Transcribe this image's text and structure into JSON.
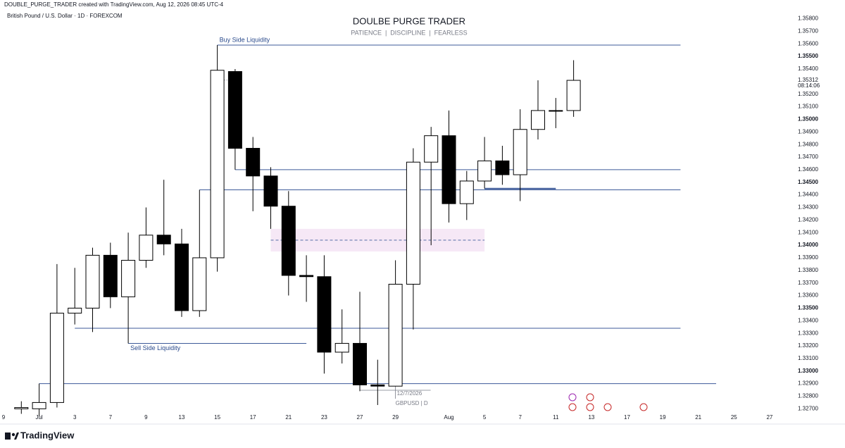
{
  "header": {
    "credit": "DOUBLE_PURGE_TRADER created with TradingView.com, Aug 12, 2026 08:45 UTC-4",
    "symbol": "British Pound / U.S. Dollar · 1D · FOREXCOM"
  },
  "footer": {
    "brand": "TradingView"
  },
  "chart_data": {
    "type": "candlestick",
    "title": "DOULBE PURGE TRADER",
    "subtitle": "PATIENCE  |  DISCIPLINE  |  FEARLESS",
    "categories": [
      "9",
      null,
      "Jul",
      null,
      "3",
      null,
      "7",
      null,
      "9",
      null,
      "13",
      null,
      "15",
      null,
      "17",
      null,
      "21",
      null,
      "23",
      null,
      "27",
      null,
      "29",
      null,
      null,
      "Aug",
      null,
      "5",
      null,
      "7",
      null,
      "11",
      null,
      "13",
      null,
      "17",
      null,
      "19",
      null,
      "21",
      null,
      "25",
      null,
      "27"
    ],
    "open": [
      null,
      1.327,
      1.327,
      1.3275,
      1.3346,
      1.335,
      1.3392,
      1.3359,
      1.3388,
      1.3408,
      1.3401,
      1.3348,
      1.339,
      1.3538,
      1.3477,
      1.3455,
      1.3431,
      1.3376,
      1.3375,
      1.3315,
      1.3322,
      1.3289,
      1.3288,
      1.3369,
      1.3466,
      1.3487,
      1.3433,
      1.3451,
      1.3467,
      1.3456,
      1.3492,
      1.3507,
      1.3507,
      null,
      null,
      null,
      null,
      null,
      null,
      null,
      null,
      null,
      null,
      null
    ],
    "high": [
      null,
      1.3276,
      1.329,
      1.3385,
      1.3382,
      1.3398,
      1.3402,
      1.341,
      1.343,
      1.3452,
      1.3413,
      1.3444,
      1.3559,
      1.354,
      1.3486,
      1.3462,
      1.3443,
      1.3392,
      1.3392,
      1.3349,
      1.3363,
      1.3309,
      1.3388,
      1.3477,
      1.3494,
      1.3507,
      1.3459,
      1.3486,
      1.3479,
      1.3508,
      1.3531,
      1.3517,
      1.3547,
      null,
      null,
      null,
      null,
      null,
      null,
      null,
      null,
      null,
      null,
      null
    ],
    "low": [
      null,
      1.3266,
      1.3264,
      1.3271,
      1.3337,
      1.3331,
      1.335,
      1.3322,
      1.3382,
      1.3392,
      1.3343,
      1.3343,
      1.3379,
      1.346,
      1.3427,
      1.3413,
      1.336,
      1.3355,
      1.3298,
      1.3306,
      1.3284,
      1.3273,
      1.3288,
      1.3333,
      1.34,
      1.3418,
      1.342,
      1.3445,
      1.3448,
      1.3435,
      1.3484,
      1.3493,
      1.3502,
      null,
      null,
      null,
      null,
      null,
      null,
      null,
      null,
      null,
      null,
      null
    ],
    "close": [
      null,
      1.3271,
      1.3275,
      1.3346,
      1.335,
      1.3392,
      1.3359,
      1.3388,
      1.3408,
      1.3401,
      1.3348,
      1.339,
      1.3539,
      1.3477,
      1.3455,
      1.3431,
      1.3376,
      1.3375,
      1.3315,
      1.3322,
      1.3289,
      1.3288,
      1.3369,
      1.3466,
      1.3487,
      1.3433,
      1.3451,
      1.3467,
      1.3456,
      1.3492,
      1.3507,
      1.3507,
      1.3531,
      null,
      null,
      null,
      null,
      null,
      null,
      null,
      null,
      null,
      null,
      null
    ],
    "up_color": "#ffffff",
    "down_color": "#000000",
    "wick_color": "#000000",
    "ylim": [
      1.3259,
      1.3587
    ],
    "yticks": [
      {
        "value": 1.358,
        "label": "1.35800"
      },
      {
        "value": 1.357,
        "label": "1.35700"
      },
      {
        "value": 1.356,
        "label": "1.35600"
      },
      {
        "value": 1.355,
        "label": "1.35500"
      },
      {
        "value": 1.354,
        "label": "1.35400"
      },
      {
        "value": 1.352,
        "label": "1.35200"
      },
      {
        "value": 1.351,
        "label": "1.35100"
      },
      {
        "value": 1.35,
        "label": "1.35000"
      },
      {
        "value": 1.349,
        "label": "1.34900"
      },
      {
        "value": 1.348,
        "label": "1.34800"
      },
      {
        "value": 1.347,
        "label": "1.34700"
      },
      {
        "value": 1.346,
        "label": "1.34600"
      },
      {
        "value": 1.345,
        "label": "1.34500"
      },
      {
        "value": 1.344,
        "label": "1.34400"
      },
      {
        "value": 1.343,
        "label": "1.34300"
      },
      {
        "value": 1.342,
        "label": "1.34200"
      },
      {
        "value": 1.341,
        "label": "1.34100"
      },
      {
        "value": 1.34,
        "label": "1.34000"
      },
      {
        "value": 1.339,
        "label": "1.33900"
      },
      {
        "value": 1.338,
        "label": "1.33800"
      },
      {
        "value": 1.337,
        "label": "1.33700"
      },
      {
        "value": 1.336,
        "label": "1.33600"
      },
      {
        "value": 1.335,
        "label": "1.33500"
      },
      {
        "value": 1.334,
        "label": "1.33400"
      },
      {
        "value": 1.333,
        "label": "1.33300"
      },
      {
        "value": 1.332,
        "label": "1.33200"
      },
      {
        "value": 1.331,
        "label": "1.33100"
      },
      {
        "value": 1.33,
        "label": "1.33000"
      },
      {
        "value": 1.329,
        "label": "1.32900"
      },
      {
        "value": 1.328,
        "label": "1.32800"
      },
      {
        "value": 1.327,
        "label": "1.32700"
      }
    ],
    "grid": false,
    "last_price": {
      "value": 1.35312,
      "label": "1.35312"
    },
    "countdown": "08:14:06",
    "line_color": "#3d5a99",
    "levels": [
      {
        "price": 1.3559,
        "from": 12,
        "to": 38,
        "label": "Buy Side Liquidity"
      },
      {
        "price": 1.346,
        "from": 13,
        "to": 38
      },
      {
        "price": 1.3444,
        "from": 11,
        "to": 38
      },
      {
        "price": 1.3445,
        "from": 27,
        "to": 31
      },
      {
        "price": 1.3334,
        "from": 4,
        "to": 38
      },
      {
        "price": 1.3322,
        "from": 7,
        "to": 17,
        "label": "Sell Side Liquidity"
      },
      {
        "price": 1.329,
        "from": 2,
        "to": 40
      }
    ],
    "zone": {
      "from": 15,
      "to": 27,
      "top": 1.3413,
      "bottom": 1.3395,
      "mid": 1.3404,
      "color": "#f6e8f6"
    },
    "tag": {
      "index": 22,
      "date": "12/7/2026",
      "symbol": "GBPUSD | D"
    }
  }
}
